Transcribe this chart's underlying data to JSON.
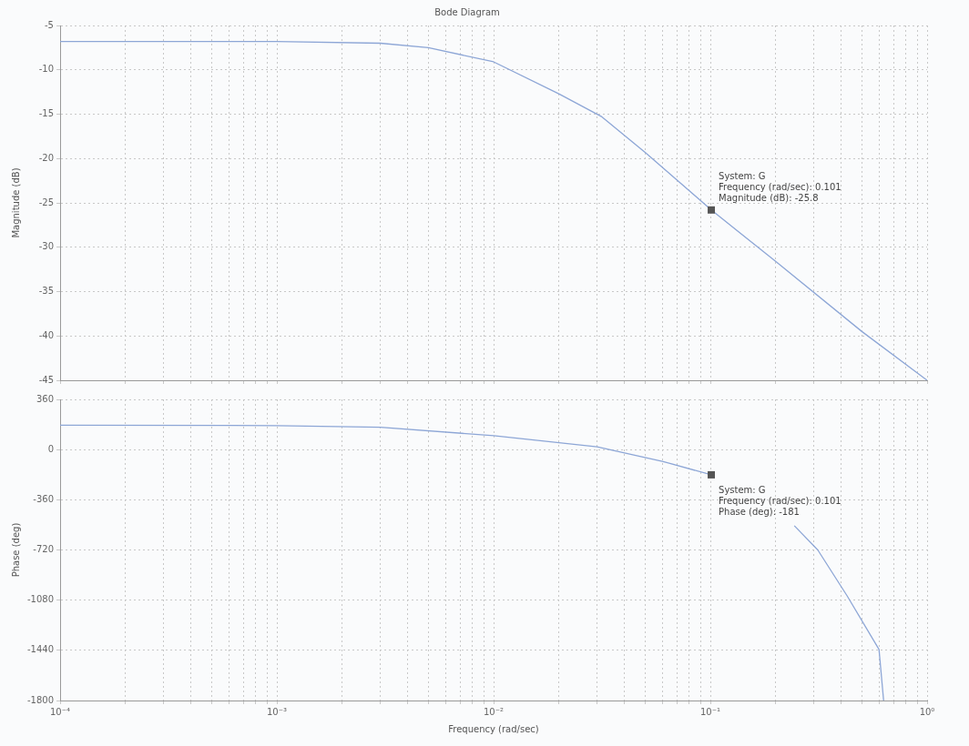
{
  "chart_data": [
    {
      "type": "line",
      "title": "Bode Diagram",
      "ylabel": "Magnitude (dB)",
      "color": "#8da6d6",
      "log": "x",
      "grid": true,
      "tick_labels": "y",
      "x": [
        0.0001,
        0.001,
        0.003,
        0.005,
        0.01,
        0.02,
        0.0316,
        0.05,
        0.101,
        0.2,
        0.5,
        1
      ],
      "values": [
        -6.8,
        -6.8,
        -7.0,
        -7.5,
        -9.1,
        -12.7,
        -15.3,
        -19.3,
        -25.8,
        -31.6,
        -39.5,
        -45
      ],
      "xlim": [
        0.0001,
        1
      ],
      "xticks": [
        0.0001,
        0.0002,
        0.0003,
        0.0004,
        0.0005,
        0.0006,
        0.0007,
        0.0008,
        0.0009,
        0.001,
        0.002,
        0.003,
        0.004,
        0.005,
        0.006,
        0.007,
        0.008,
        0.009,
        0.01,
        0.02,
        0.03,
        0.04,
        0.05,
        0.06,
        0.07,
        0.08,
        0.09,
        0.1,
        0.2,
        0.3,
        0.4,
        0.5,
        0.6,
        0.7,
        0.8,
        0.9,
        1
      ],
      "ylim": [
        -45,
        -5
      ],
      "yticks": [
        -45,
        -40,
        -35,
        -30,
        -25,
        -20,
        -15,
        -10,
        -5
      ],
      "annotations": [
        {
          "text": "System: G\nFrequency (rad/sec): 0.101\nMagnitude (dB): -25.8",
          "x": 0.101,
          "y": -25.8
        }
      ]
    },
    {
      "type": "line",
      "xlabel": "Frequency (rad/sec)",
      "ylabel": "Phase (deg)",
      "color": "#8da6d6",
      "log": "x",
      "grid": true,
      "x": [
        0.0001,
        0.001,
        0.003,
        0.01,
        0.03,
        0.06,
        0.101,
        0.16,
        0.244,
        0.313,
        0.427,
        0.6,
        0.63
      ],
      "values": [
        175,
        172,
        160,
        100,
        20,
        -84,
        -181,
        null,
        -546,
        -720,
        -1048,
        -1434,
        -1800
      ],
      "xlim": [
        0.0001,
        1
      ],
      "xticks": [
        {
          "value": 0.0001,
          "label": "10⁻⁴"
        },
        {
          "value": 0.0002,
          "label": null
        },
        {
          "value": 0.0003,
          "label": null
        },
        {
          "value": 0.0004,
          "label": null
        },
        {
          "value": 0.0005,
          "label": null
        },
        {
          "value": 0.0006,
          "label": null
        },
        {
          "value": 0.0007,
          "label": null
        },
        {
          "value": 0.0008,
          "label": null
        },
        {
          "value": 0.0009,
          "label": null
        },
        {
          "value": 0.001,
          "label": "10⁻³"
        },
        {
          "value": 0.002,
          "label": null
        },
        {
          "value": 0.003,
          "label": null
        },
        {
          "value": 0.004,
          "label": null
        },
        {
          "value": 0.005,
          "label": null
        },
        {
          "value": 0.006,
          "label": null
        },
        {
          "value": 0.007,
          "label": null
        },
        {
          "value": 0.008,
          "label": null
        },
        {
          "value": 0.009,
          "label": null
        },
        {
          "value": 0.01,
          "label": "10⁻²"
        },
        {
          "value": 0.02,
          "label": null
        },
        {
          "value": 0.03,
          "label": null
        },
        {
          "value": 0.04,
          "label": null
        },
        {
          "value": 0.05,
          "label": null
        },
        {
          "value": 0.06,
          "label": null
        },
        {
          "value": 0.07,
          "label": null
        },
        {
          "value": 0.08,
          "label": null
        },
        {
          "value": 0.09,
          "label": null
        },
        {
          "value": 0.1,
          "label": "10⁻¹"
        },
        {
          "value": 0.2,
          "label": null
        },
        {
          "value": 0.3,
          "label": null
        },
        {
          "value": 0.4,
          "label": null
        },
        {
          "value": 0.5,
          "label": null
        },
        {
          "value": 0.6,
          "label": null
        },
        {
          "value": 0.7,
          "label": null
        },
        {
          "value": 0.8,
          "label": null
        },
        {
          "value": 0.9,
          "label": null
        },
        {
          "value": 1,
          "label": "10⁰"
        }
      ],
      "ylim": [
        -1800,
        360
      ],
      "yticks": [
        -1800,
        -1440,
        -1080,
        -720,
        -360,
        0,
        360
      ],
      "annotations": [
        {
          "text": "System: G\nFrequency (rad/sec): 0.101\nPhase (deg): -181",
          "x": 0.101,
          "y": -181
        }
      ]
    }
  ]
}
